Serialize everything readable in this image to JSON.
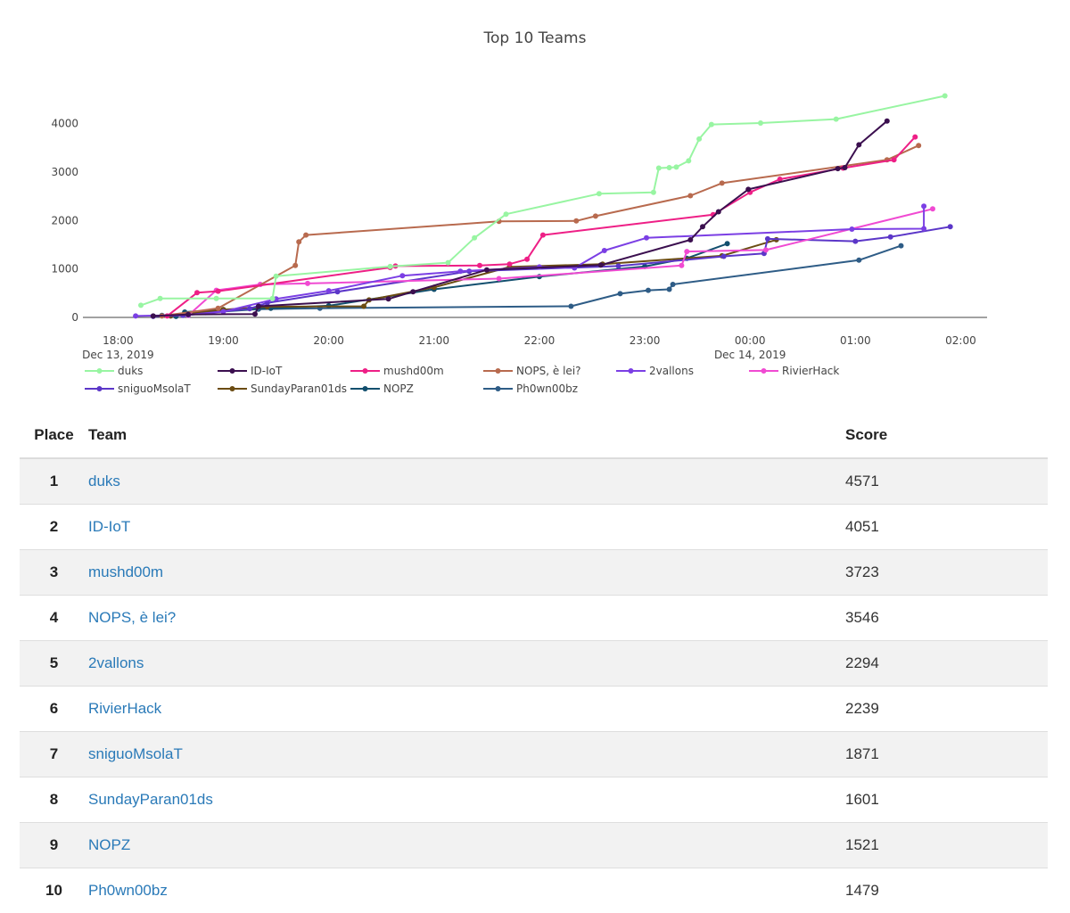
{
  "chart_data": {
    "type": "line",
    "title": "Top 10 Teams",
    "xlabel": "",
    "ylabel": "",
    "x_axis": {
      "range": [
        "2019-12-13 17:40",
        "2019-12-14 02:15"
      ],
      "ticks": [
        {
          "time": "2019-12-13 18:00",
          "label": "18:00",
          "sublabel": "Dec 13, 2019"
        },
        {
          "time": "2019-12-13 19:00",
          "label": "19:00",
          "sublabel": ""
        },
        {
          "time": "2019-12-13 20:00",
          "label": "20:00",
          "sublabel": ""
        },
        {
          "time": "2019-12-13 21:00",
          "label": "21:00",
          "sublabel": ""
        },
        {
          "time": "2019-12-13 22:00",
          "label": "22:00",
          "sublabel": ""
        },
        {
          "time": "2019-12-13 23:00",
          "label": "23:00",
          "sublabel": ""
        },
        {
          "time": "2019-12-14 00:00",
          "label": "00:00",
          "sublabel": "Dec 14, 2019"
        },
        {
          "time": "2019-12-14 01:00",
          "label": "01:00",
          "sublabel": ""
        },
        {
          "time": "2019-12-14 02:00",
          "label": "02:00",
          "sublabel": ""
        }
      ]
    },
    "y_axis": {
      "range": [
        0,
        4800
      ],
      "ticks": [
        0,
        1000,
        2000,
        3000,
        4000
      ]
    },
    "legend_position": "bottom",
    "grid": false,
    "series": [
      {
        "name": "duks",
        "color": "#98f5a2",
        "points": [
          [
            "2019-12-13 18:13",
            250
          ],
          [
            "2019-12-13 18:24",
            390
          ],
          [
            "2019-12-13 18:56",
            390
          ],
          [
            "2019-12-13 19:28",
            390
          ],
          [
            "2019-12-13 19:30",
            850
          ],
          [
            "2019-12-13 20:35",
            1050
          ],
          [
            "2019-12-13 21:08",
            1130
          ],
          [
            "2019-12-13 21:23",
            1640
          ],
          [
            "2019-12-13 21:41",
            2130
          ],
          [
            "2019-12-13 22:34",
            2550
          ],
          [
            "2019-12-13 23:05",
            2580
          ],
          [
            "2019-12-13 23:08",
            3080
          ],
          [
            "2019-12-13 23:14",
            3090
          ],
          [
            "2019-12-13 23:18",
            3100
          ],
          [
            "2019-12-13 23:25",
            3230
          ],
          [
            "2019-12-13 23:31",
            3680
          ],
          [
            "2019-12-13 23:38",
            3980
          ],
          [
            "2019-12-14 00:06",
            4010
          ],
          [
            "2019-12-14 00:49",
            4090
          ],
          [
            "2019-12-14 01:51",
            4571
          ]
        ]
      },
      {
        "name": "ID-IoT",
        "color": "#3b0f4f",
        "points": [
          [
            "2019-12-13 18:20",
            30
          ],
          [
            "2019-12-13 18:40",
            60
          ],
          [
            "2019-12-13 19:18",
            70
          ],
          [
            "2019-12-13 19:20",
            230
          ],
          [
            "2019-12-13 20:34",
            380
          ],
          [
            "2019-12-13 20:48",
            530
          ],
          [
            "2019-12-13 21:30",
            980
          ],
          [
            "2019-12-13 22:35",
            1080
          ],
          [
            "2019-12-13 23:26",
            1600
          ],
          [
            "2019-12-13 23:33",
            1870
          ],
          [
            "2019-12-13 23:42",
            2180
          ],
          [
            "2019-12-13 23:59",
            2640
          ],
          [
            "2019-12-14 00:50",
            3070
          ],
          [
            "2019-12-14 00:54",
            3090
          ],
          [
            "2019-12-14 01:02",
            3560
          ],
          [
            "2019-12-14 01:18",
            4051
          ]
        ]
      },
      {
        "name": "mushd00m",
        "color": "#ee1f86",
        "points": [
          [
            "2019-12-13 18:28",
            30
          ],
          [
            "2019-12-13 18:45",
            510
          ],
          [
            "2019-12-13 18:57",
            540
          ],
          [
            "2019-12-13 20:35",
            1030
          ],
          [
            "2019-12-13 20:38",
            1060
          ],
          [
            "2019-12-13 21:26",
            1070
          ],
          [
            "2019-12-13 21:43",
            1100
          ],
          [
            "2019-12-13 21:53",
            1200
          ],
          [
            "2019-12-13 22:02",
            1700
          ],
          [
            "2019-12-13 23:39",
            2120
          ],
          [
            "2019-12-14 00:00",
            2580
          ],
          [
            "2019-12-14 00:17",
            2850
          ],
          [
            "2019-12-14 00:53",
            3080
          ],
          [
            "2019-12-14 01:22",
            3250
          ],
          [
            "2019-12-14 01:34",
            3723
          ]
        ]
      },
      {
        "name": "NOPS, è lei?",
        "color": "#b86a4e",
        "points": [
          [
            "2019-12-13 18:25",
            30
          ],
          [
            "2019-12-13 18:57",
            190
          ],
          [
            "2019-12-13 19:41",
            1070
          ],
          [
            "2019-12-13 19:43",
            1560
          ],
          [
            "2019-12-13 19:47",
            1700
          ],
          [
            "2019-12-13 21:37",
            1980
          ],
          [
            "2019-12-13 22:21",
            1990
          ],
          [
            "2019-12-13 22:32",
            2090
          ],
          [
            "2019-12-13 23:26",
            2510
          ],
          [
            "2019-12-13 23:44",
            2770
          ],
          [
            "2019-12-14 01:18",
            3250
          ],
          [
            "2019-12-14 01:36",
            3546
          ]
        ]
      },
      {
        "name": "2vallons",
        "color": "#7b3fe4",
        "points": [
          [
            "2019-12-13 18:10",
            30
          ],
          [
            "2019-12-13 18:40",
            50
          ],
          [
            "2019-12-13 19:00",
            120
          ],
          [
            "2019-12-13 19:30",
            380
          ],
          [
            "2019-12-13 20:00",
            550
          ],
          [
            "2019-12-13 20:42",
            860
          ],
          [
            "2019-12-13 21:15",
            950
          ],
          [
            "2019-12-13 22:00",
            1040
          ],
          [
            "2019-12-13 22:20",
            1020
          ],
          [
            "2019-12-13 22:37",
            1380
          ],
          [
            "2019-12-13 23:01",
            1640
          ],
          [
            "2019-12-14 00:58",
            1820
          ],
          [
            "2019-12-14 01:39",
            1830
          ],
          [
            "2019-12-14 01:39",
            2294
          ]
        ]
      },
      {
        "name": "RivierHack",
        "color": "#f04ad2",
        "points": [
          [
            "2019-12-13 18:40",
            40
          ],
          [
            "2019-12-13 18:56",
            560
          ],
          [
            "2019-12-13 19:21",
            680
          ],
          [
            "2019-12-13 19:48",
            700
          ],
          [
            "2019-12-13 21:37",
            800
          ],
          [
            "2019-12-13 23:21",
            1070
          ],
          [
            "2019-12-13 23:24",
            1360
          ],
          [
            "2019-12-14 00:09",
            1390
          ],
          [
            "2019-12-14 01:44",
            2239
          ]
        ]
      },
      {
        "name": "sniguoMsolaT",
        "color": "#5b36c8",
        "points": [
          [
            "2019-12-13 18:20",
            20
          ],
          [
            "2019-12-13 18:37",
            40
          ],
          [
            "2019-12-13 19:15",
            180
          ],
          [
            "2019-12-13 19:25",
            300
          ],
          [
            "2019-12-13 20:05",
            530
          ],
          [
            "2019-12-13 21:20",
            950
          ],
          [
            "2019-12-13 22:45",
            1060
          ],
          [
            "2019-12-13 23:45",
            1260
          ],
          [
            "2019-12-14 00:08",
            1320
          ],
          [
            "2019-12-14 00:10",
            1620
          ],
          [
            "2019-12-14 01:00",
            1570
          ],
          [
            "2019-12-14 01:20",
            1660
          ],
          [
            "2019-12-14 01:54",
            1871
          ]
        ]
      },
      {
        "name": "SundayParan01ds",
        "color": "#6b4c12",
        "points": [
          [
            "2019-12-13 18:30",
            30
          ],
          [
            "2019-12-13 19:00",
            160
          ],
          [
            "2019-12-13 19:25",
            220
          ],
          [
            "2019-12-13 20:20",
            230
          ],
          [
            "2019-12-13 20:23",
            360
          ],
          [
            "2019-12-13 21:00",
            620
          ],
          [
            "2019-12-13 21:43",
            1040
          ],
          [
            "2019-12-13 22:36",
            1100
          ],
          [
            "2019-12-13 23:44",
            1270
          ],
          [
            "2019-12-14 00:15",
            1601
          ]
        ]
      },
      {
        "name": "NOPZ",
        "color": "#124f6e",
        "points": [
          [
            "2019-12-13 18:33",
            20
          ],
          [
            "2019-12-13 18:38",
            110
          ],
          [
            "2019-12-13 19:00",
            160
          ],
          [
            "2019-12-13 19:27",
            190
          ],
          [
            "2019-12-13 20:00",
            240
          ],
          [
            "2019-12-13 21:00",
            580
          ],
          [
            "2019-12-13 22:00",
            840
          ],
          [
            "2019-12-13 23:00",
            1050
          ],
          [
            "2019-12-13 23:24",
            1220
          ],
          [
            "2019-12-13 23:47",
            1521
          ]
        ]
      },
      {
        "name": "Ph0wn00bz",
        "color": "#2e5c86",
        "points": [
          [
            "2019-12-13 18:25",
            40
          ],
          [
            "2019-12-13 18:50",
            100
          ],
          [
            "2019-12-13 19:20",
            170
          ],
          [
            "2019-12-13 19:55",
            190
          ],
          [
            "2019-12-13 22:18",
            230
          ],
          [
            "2019-12-13 22:46",
            490
          ],
          [
            "2019-12-13 23:02",
            560
          ],
          [
            "2019-12-13 23:14",
            580
          ],
          [
            "2019-12-13 23:16",
            680
          ],
          [
            "2019-12-14 01:02",
            1180
          ],
          [
            "2019-12-14 01:26",
            1479
          ]
        ]
      }
    ]
  },
  "table": {
    "headers": {
      "place": "Place",
      "team": "Team",
      "score": "Score"
    },
    "rows": [
      {
        "place": "1",
        "team": "duks",
        "score": "4571"
      },
      {
        "place": "2",
        "team": "ID-IoT",
        "score": "4051"
      },
      {
        "place": "3",
        "team": "mushd00m",
        "score": "3723"
      },
      {
        "place": "4",
        "team": "NOPS, è lei?",
        "score": "3546"
      },
      {
        "place": "5",
        "team": "2vallons",
        "score": "2294"
      },
      {
        "place": "6",
        "team": "RivierHack",
        "score": "2239"
      },
      {
        "place": "7",
        "team": "sniguoMsolaT",
        "score": "1871"
      },
      {
        "place": "8",
        "team": "SundayParan01ds",
        "score": "1601"
      },
      {
        "place": "9",
        "team": "NOPZ",
        "score": "1521"
      },
      {
        "place": "10",
        "team": "Ph0wn00bz",
        "score": "1479"
      }
    ]
  }
}
